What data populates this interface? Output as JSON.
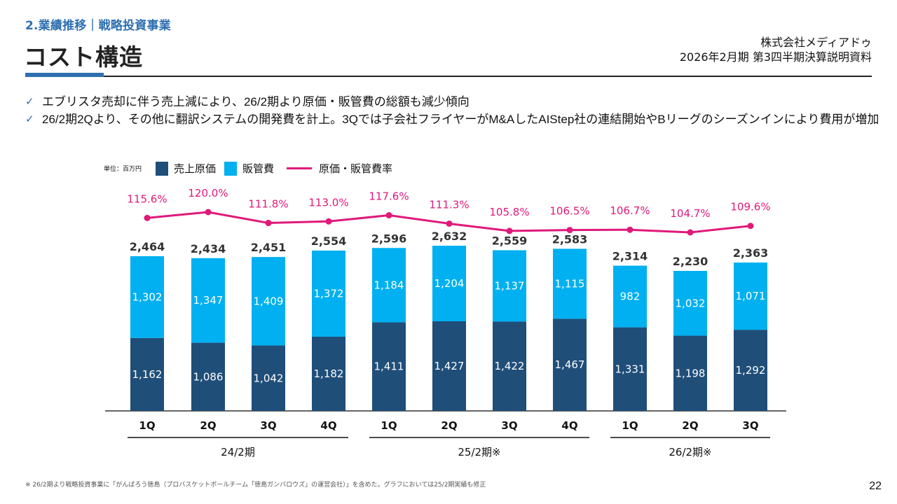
{
  "header": {
    "section": "2.業績推移｜戦略投資事業",
    "title": "コスト構造",
    "company": "株式会社メディアドゥ",
    "document": "2026年2月期 第3四半期決算説明資料"
  },
  "bullets": [
    "エブリスタ売却に伴う売上減により、26/2期より原価・販管費の総額も減少傾向",
    "26/2期2Qより、その他に翻訳システムの開発費を計上。3Qでは子会社フライヤーがM&AしたAIStep社の連結開始やBリーグのシーズンインにより費用が増加"
  ],
  "check_icon": "✓",
  "footnote": "※ 26/2期より戦略投資事業に「がんばろう徳島（プロバスケットボールチーム「徳島ガンバロウズ」の運営会社）」を含めた。グラフにおいては25/2期実績も修正",
  "page_number": "22",
  "colors": {
    "cost_of_sales": "#1f4e79",
    "sga": "#00b0f0",
    "ratio": "#e0197a",
    "accent": "#2e6fb0"
  },
  "chart_data": {
    "type": "bar",
    "stacked": true,
    "unit_label": "単位：百万円",
    "legend": [
      "売上原価",
      "販管費",
      "原価・販管費率"
    ],
    "categories": [
      "1Q",
      "2Q",
      "3Q",
      "4Q",
      "1Q",
      "2Q",
      "3Q",
      "4Q",
      "1Q",
      "2Q",
      "3Q"
    ],
    "groups": [
      {
        "label": "24/2期",
        "start": 0,
        "end": 3
      },
      {
        "label": "25/2期※",
        "start": 4,
        "end": 7
      },
      {
        "label": "26/2期※",
        "start": 8,
        "end": 10
      }
    ],
    "series": [
      {
        "name": "売上原価",
        "values": [
          1162,
          1086,
          1042,
          1182,
          1411,
          1427,
          1422,
          1467,
          1331,
          1198,
          1292
        ],
        "labels": [
          "1,162",
          "1,086",
          "1,042",
          "1,182",
          "1,411",
          "1,427",
          "1,422",
          "1,467",
          "1,331",
          "1,198",
          "1,292"
        ]
      },
      {
        "name": "販管費",
        "values": [
          1302,
          1347,
          1409,
          1372,
          1184,
          1204,
          1137,
          1115,
          982,
          1032,
          1071
        ],
        "labels": [
          "1,302",
          "1,347",
          "1,409",
          "1,372",
          "1,184",
          "1,204",
          "1,137",
          "1,115",
          "982",
          "1,032",
          "1,071"
        ]
      },
      {
        "name": "原価・販管費率",
        "type": "line",
        "values": [
          115.6,
          120.0,
          111.8,
          113.0,
          117.6,
          111.3,
          105.8,
          106.5,
          106.7,
          104.7,
          109.6
        ],
        "labels": [
          "115.6%",
          "120.0%",
          "111.8%",
          "113.0%",
          "117.6%",
          "111.3%",
          "105.8%",
          "106.5%",
          "106.7%",
          "104.7%",
          "109.6%"
        ]
      }
    ],
    "totals": [
      2464,
      2434,
      2451,
      2554,
      2596,
      2632,
      2559,
      2583,
      2314,
      2230,
      2363
    ],
    "total_labels": [
      "2,464",
      "2,434",
      "2,451",
      "2,554",
      "2,596",
      "2,632",
      "2,559",
      "2,583",
      "2,314",
      "2,230",
      "2,363"
    ],
    "ylim": [
      0,
      2700
    ],
    "grid": false
  }
}
